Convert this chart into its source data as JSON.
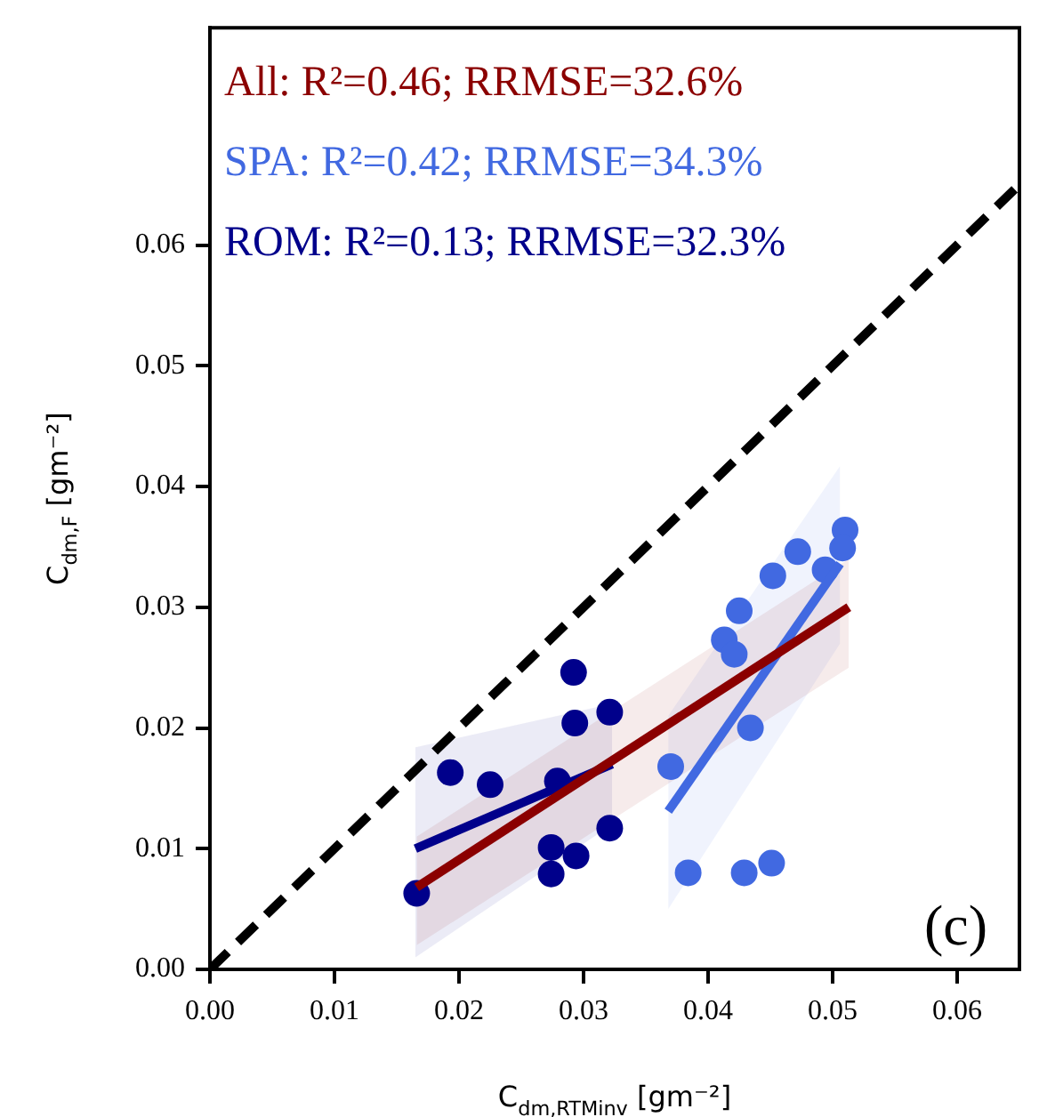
{
  "chart_data": {
    "type": "scatter",
    "xlabel": "C$_{dm,RTMinv}$ [gm⁻²]",
    "ylabel": "C$_{dm,F}$ [gm⁻²]",
    "xlim": [
      0,
      0.065
    ],
    "ylim": [
      0,
      0.078
    ],
    "xticks": [
      {
        "value": 0,
        "label": "0.00"
      },
      0.01,
      0.02,
      0.03,
      0.04,
      0.05,
      0.06
    ],
    "yticks": [
      {
        "value": 0,
        "label": "0.00"
      },
      0.01,
      0.02,
      0.03,
      0.04,
      0.05,
      0.06
    ],
    "grid": false,
    "marker": "circle",
    "annotations": [
      "All: R²=0.46; RRMSE=32.6%",
      "SPA: R²=0.42; RRMSE=34.3%",
      "ROM: R²=0.13; RRMSE=32.3%",
      "(c)"
    ],
    "series": [
      {
        "type": "line",
        "color": "#8b0000",
        "x": [
          0.0166,
          0.0513
        ],
        "values": [
          0.0068,
          0.03
        ],
        "lower": [
          0.002,
          0.025
        ],
        "upper": [
          0.011,
          0.034
        ],
        "marker": "none"
      },
      {
        "type": "line",
        "color": "#4169e1",
        "x": [
          0.0368,
          0.0506
        ],
        "values": [
          0.0131,
          0.0336
        ],
        "lower": [
          0.005,
          0.027
        ],
        "upper": [
          0.021,
          0.0417
        ],
        "marker": "none"
      },
      {
        "type": "line",
        "color": "#00008b",
        "x": [
          0.0165,
          0.0323
        ],
        "values": [
          0.01,
          0.017
        ],
        "lower": [
          0.001,
          0.012
        ],
        "upper": [
          0.0184,
          0.022
        ],
        "marker": "none"
      },
      {
        "color": "#4169e1",
        "x": [
          0.051,
          0.0508,
          0.0494,
          0.0472,
          0.0452,
          0.0425,
          0.0413,
          0.0421,
          0.0434,
          0.037,
          0.0384,
          0.0429,
          0.0451
        ],
        "values": [
          0.0364,
          0.0349,
          0.0331,
          0.0346,
          0.0326,
          0.0297,
          0.0273,
          0.0261,
          0.02,
          0.0168,
          0.008,
          0.008,
          0.0088
        ]
      },
      {
        "color": "#00008b",
        "x": [
          0.0166,
          0.0193,
          0.0225,
          0.0279,
          0.0274,
          0.0274,
          0.0294,
          0.0292,
          0.0293,
          0.0321,
          0.0321
        ],
        "values": [
          0.0063,
          0.0163,
          0.0153,
          0.0156,
          0.0101,
          0.0079,
          0.0094,
          0.0246,
          0.0204,
          0.0213,
          0.0117
        ]
      },
      {
        "type": "line",
        "color": "#000000",
        "x": [
          0,
          0.065
        ],
        "values": [
          0,
          0.065
        ],
        "line_style": "dashed",
        "marker": "none"
      }
    ]
  }
}
